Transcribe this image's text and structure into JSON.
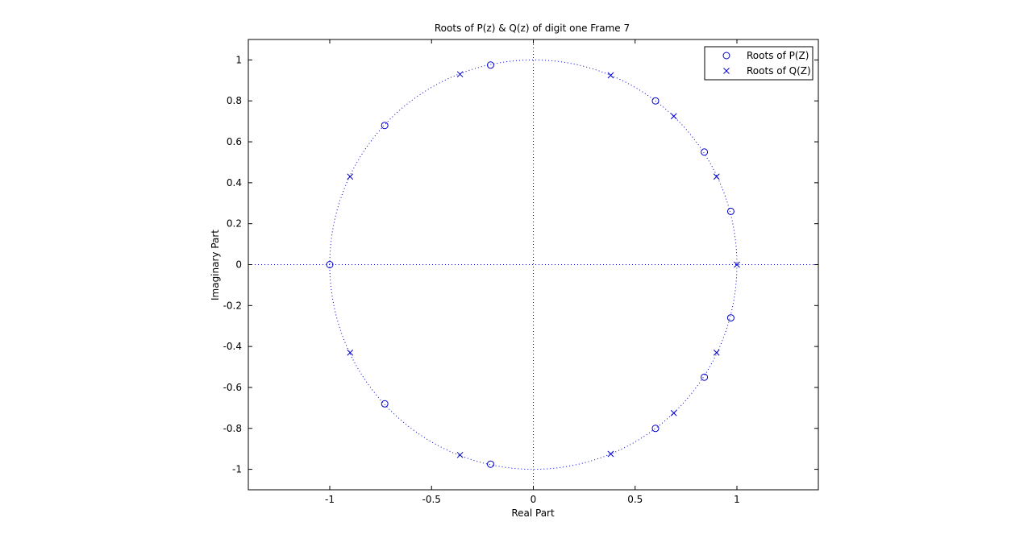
{
  "chart_data": {
    "type": "scatter",
    "title": "Roots of P(z) & Q(z) of digit one Frame 7",
    "xlabel": "Real Part",
    "ylabel": "Imaginary Part",
    "xlim": [
      -1.4,
      1.4
    ],
    "ylim": [
      -1.1,
      1.1
    ],
    "x_ticks": [
      -1,
      -0.5,
      0,
      0.5,
      1
    ],
    "y_ticks": [
      -1,
      -0.8,
      -0.6,
      -0.4,
      -0.2,
      0,
      0.2,
      0.4,
      0.6,
      0.8,
      1
    ],
    "unit_circle": true,
    "grid": false,
    "legend_position": "top-right",
    "color": "#0000cc",
    "series": [
      {
        "name": "Roots of P(Z)",
        "marker": "circle",
        "points": [
          [
            -1.0,
            0.0
          ],
          [
            -0.73,
            0.68
          ],
          [
            -0.73,
            -0.68
          ],
          [
            -0.21,
            0.975
          ],
          [
            -0.21,
            -0.975
          ],
          [
            0.6,
            0.8
          ],
          [
            0.6,
            -0.8
          ],
          [
            0.84,
            0.55
          ],
          [
            0.84,
            -0.55
          ],
          [
            0.97,
            0.26
          ],
          [
            0.97,
            -0.26
          ]
        ]
      },
      {
        "name": "Roots of Q(Z)",
        "marker": "x",
        "points": [
          [
            1.0,
            0.0
          ],
          [
            -0.9,
            0.43
          ],
          [
            -0.9,
            -0.43
          ],
          [
            -0.36,
            0.93
          ],
          [
            -0.36,
            -0.93
          ],
          [
            0.38,
            0.925
          ],
          [
            0.38,
            -0.925
          ],
          [
            0.69,
            0.725
          ],
          [
            0.69,
            -0.725
          ],
          [
            0.9,
            0.43
          ],
          [
            0.9,
            -0.43
          ]
        ]
      }
    ]
  }
}
